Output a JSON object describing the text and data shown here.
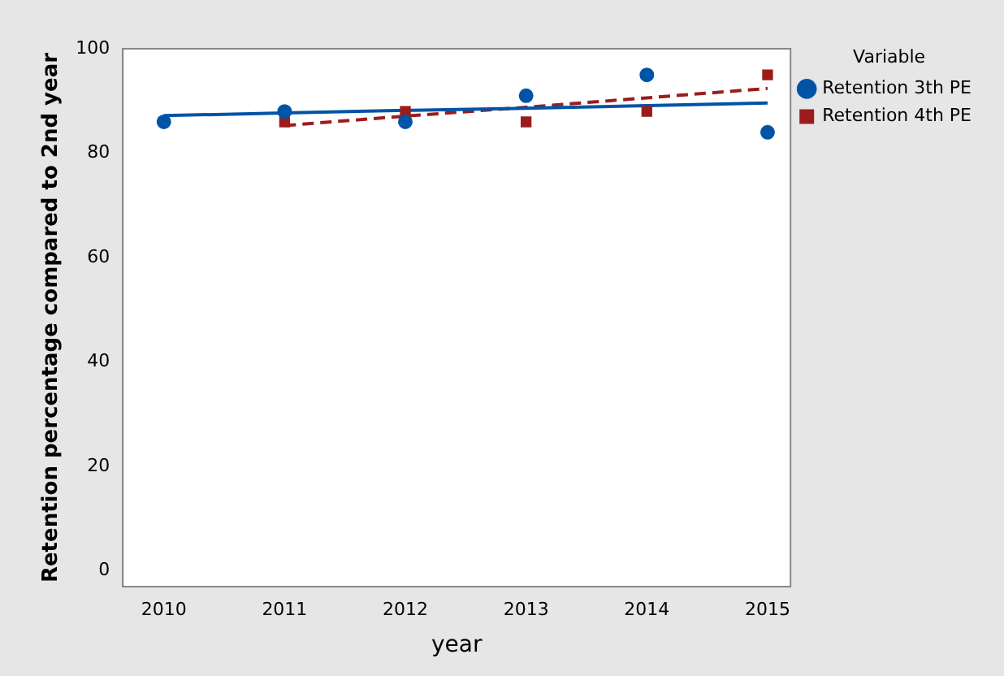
{
  "chart_data": {
    "type": "scatter",
    "xlabel": "year",
    "ylabel": "Retention percentage compared to 2nd year",
    "legend_title": "Variable",
    "legend": "top right",
    "grid": false,
    "xlim": [
      2009.66,
      2015.19
    ],
    "xticks": [
      2010,
      2011,
      2012,
      2013,
      2014,
      2015
    ],
    "ylim": [
      -3,
      100
    ],
    "yticks": [
      0,
      20,
      40,
      60,
      80,
      100
    ],
    "series": [
      {
        "name": "Retention 3th PE",
        "color": "#0054a6",
        "marker": "circle",
        "x": [
          2010,
          2011,
          2012,
          2013,
          2014,
          2015
        ],
        "values": [
          86,
          88,
          86,
          91,
          95,
          84
        ]
      },
      {
        "name": "Retention 4th PE",
        "color": "#9b1c1c",
        "marker": "square",
        "x": [
          2011,
          2012,
          2013,
          2014,
          2015
        ],
        "values": [
          86,
          88,
          86,
          88,
          95
        ]
      },
      {
        "type": "line",
        "color": "#0054a6",
        "line_style": "solid",
        "x": [
          2010,
          2011,
          2012,
          2013,
          2014,
          2015
        ],
        "values": [
          87.2,
          87.7,
          88.2,
          88.6,
          89.1,
          89.6
        ]
      },
      {
        "type": "line",
        "color": "#9b1c1c",
        "line_style": "dashed",
        "x": [
          2011,
          2012,
          2013,
          2014,
          2015
        ],
        "values": [
          85.3,
          87.1,
          88.8,
          90.6,
          92.4
        ]
      }
    ]
  }
}
